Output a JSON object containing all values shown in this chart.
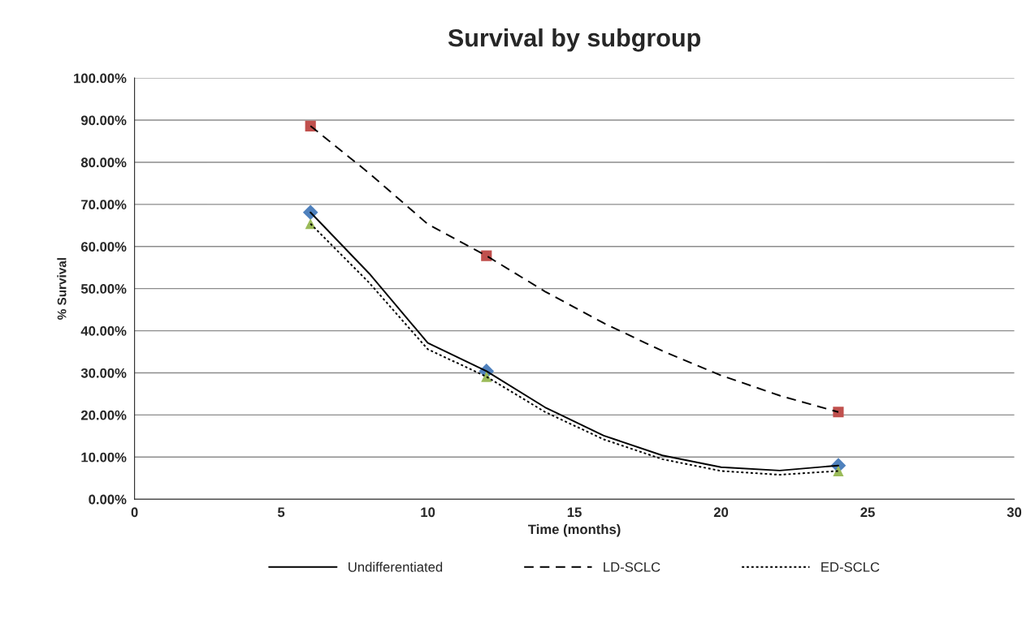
{
  "chart_data": {
    "type": "line",
    "title": "Survival by subgroup",
    "xlabel": "Time (months)",
    "ylabel": "% Survival",
    "xlim": [
      0,
      30
    ],
    "xticks": [
      0,
      5,
      10,
      15,
      20,
      25,
      30
    ],
    "ylim": [
      0,
      100
    ],
    "yticks": [
      {
        "value": 0,
        "label": "0.00%"
      },
      {
        "value": 10,
        "label": "10.00%"
      },
      {
        "value": 20,
        "label": "20.00%"
      },
      {
        "value": 30,
        "label": "30.00%"
      },
      {
        "value": 40,
        "label": "40.00%"
      },
      {
        "value": 50,
        "label": "50.00%"
      },
      {
        "value": 60,
        "label": "60.00%"
      },
      {
        "value": 70,
        "label": "70.00%"
      },
      {
        "value": 80,
        "label": "80.00%"
      },
      {
        "value": 90,
        "label": "90.00%"
      },
      {
        "value": 100,
        "label": "100.00%"
      }
    ],
    "grid": "y",
    "legend": "bottom",
    "series": [
      {
        "name": "Undifferentiated",
        "color": "#000000",
        "line_style": "solid",
        "marker": "none",
        "x": [
          6,
          8,
          10,
          12,
          14,
          16,
          18,
          20,
          22,
          24
        ],
        "values": [
          68.1,
          53.6,
          37.1,
          30.4,
          21.8,
          15.1,
          10.4,
          7.6,
          6.8,
          8.0
        ]
      },
      {
        "name": "LD-SCLC",
        "color": "#000000",
        "line_style": "dashed",
        "marker": "none",
        "x": [
          6,
          8,
          10,
          12,
          14,
          16,
          18,
          20,
          22,
          24
        ],
        "values": [
          88.6,
          77.4,
          65.3,
          57.8,
          49.3,
          41.8,
          35.2,
          29.4,
          24.6,
          20.7
        ]
      },
      {
        "name": "ED-SCLC",
        "color": "#000000",
        "line_style": "dotted",
        "marker": "none",
        "x": [
          6,
          8,
          10,
          12,
          14,
          16,
          18,
          20,
          22,
          24
        ],
        "values": [
          65.4,
          51.4,
          35.6,
          29.1,
          20.7,
          14.2,
          9.5,
          6.7,
          5.8,
          6.7
        ]
      },
      {
        "type": "scatter",
        "color": "#4f81bd",
        "marker": "diamond",
        "x": [
          6,
          12,
          24
        ],
        "values": [
          68.1,
          30.4,
          8.0
        ]
      },
      {
        "type": "scatter",
        "color": "#c0504d",
        "marker": "square",
        "x": [
          6,
          12,
          24
        ],
        "values": [
          88.6,
          57.8,
          20.7
        ]
      },
      {
        "type": "scatter",
        "color": "#9bbb59",
        "marker": "triangle",
        "x": [
          6,
          12,
          24
        ],
        "values": [
          65.4,
          29.1,
          6.7
        ]
      }
    ]
  }
}
